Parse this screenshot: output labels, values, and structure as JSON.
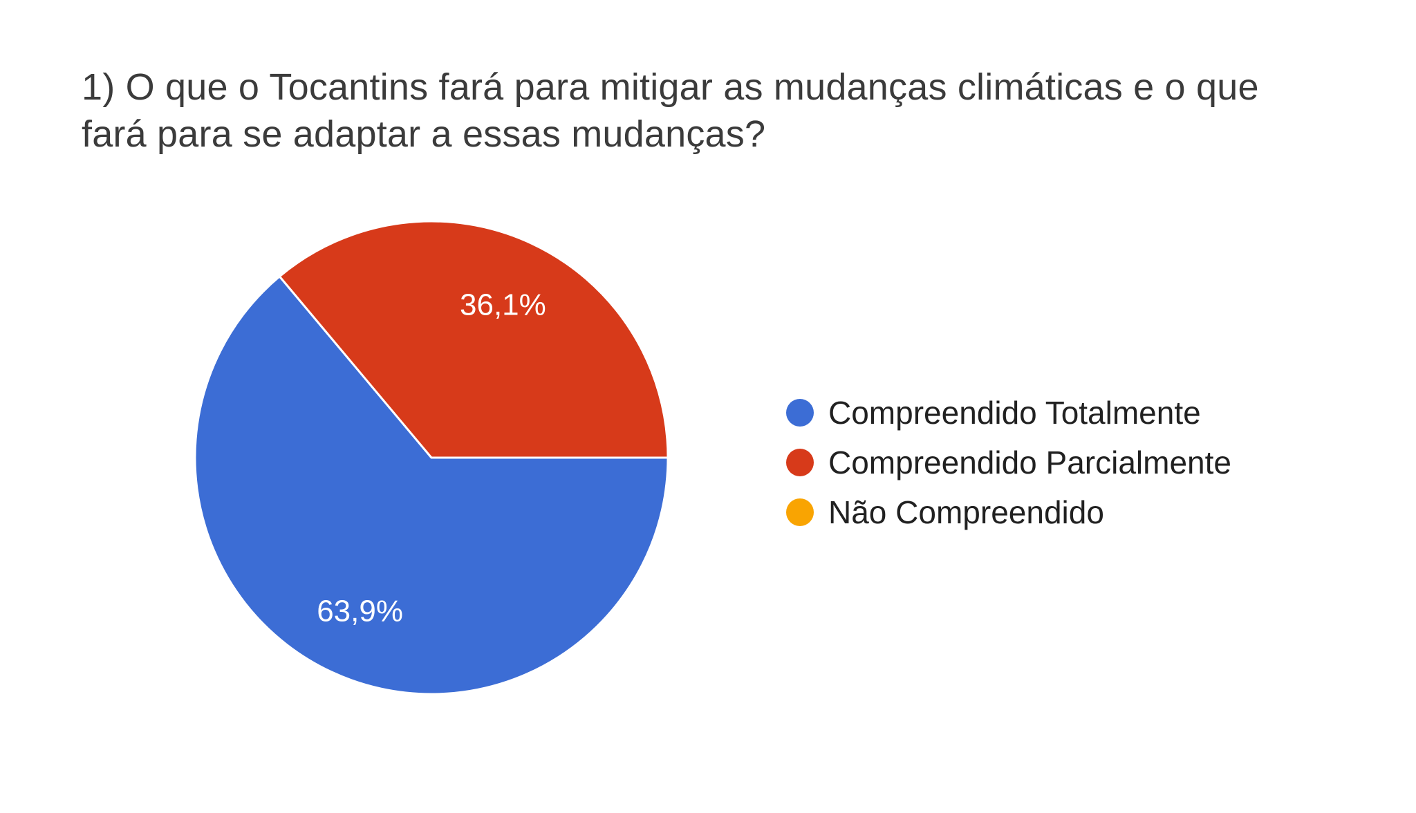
{
  "title": "1) O que o Tocantins fará para mitigar as mudanças climáticas e o que\nfará para se adaptar a essas mudanças?",
  "background_color": "#ffffff",
  "title_color": "#3b3b3b",
  "legend_text_color": "#212121",
  "chart_data": {
    "type": "pie",
    "title": "1) O que o Tocantins fará para mitigar as mudanças climáticas e o que fará para se adaptar a essas mudanças?",
    "legend_position": "right",
    "start_angle_deg": 0,
    "direction": "clockwise",
    "slice_label_color": "#ffffff",
    "categories": [
      "Compreendido Totalmente",
      "Compreendido Parcialmente",
      "Não Compreendido"
    ],
    "values": [
      63.9,
      36.1,
      0
    ],
    "value_labels": [
      "63,9%",
      "36,1%",
      ""
    ],
    "colors": [
      "#3c6dd5",
      "#d73a1a",
      "#f9a402"
    ]
  }
}
